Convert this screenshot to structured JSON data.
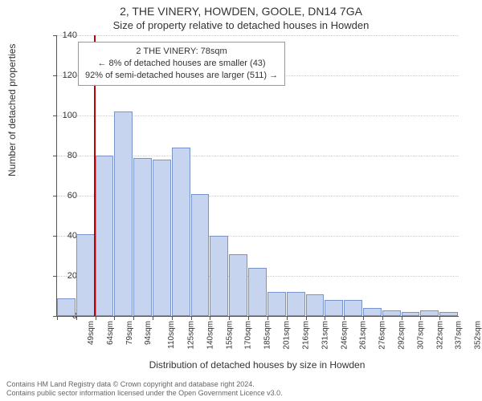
{
  "chart": {
    "type": "histogram",
    "title_main": "2, THE VINERY, HOWDEN, GOOLE, DN14 7GA",
    "title_sub": "Size of property relative to detached houses in Howden",
    "title_fontsize_main": 14,
    "title_fontsize_sub": 13,
    "background_color": "#ffffff",
    "axis_color": "#555555",
    "grid_color": "#cccccc",
    "ylabel": "Number of detached properties",
    "xlabel": "Distribution of detached houses by size in Howden",
    "label_fontsize": 12,
    "tick_fontsize": 11,
    "ylim": [
      0,
      140
    ],
    "ytick_step": 20,
    "bar_color": "#c6d4ef",
    "bar_border_color": "#7a93c9",
    "xtick_suffix": "sqm",
    "bin_starts": [
      49,
      64,
      79,
      94,
      110,
      125,
      140,
      155,
      170,
      185,
      201,
      216,
      231,
      246,
      261,
      276,
      292,
      307,
      322,
      337,
      352
    ],
    "values": [
      9,
      41,
      80,
      102,
      79,
      78,
      84,
      61,
      40,
      31,
      24,
      12,
      12,
      11,
      8,
      8,
      4,
      3,
      2,
      3,
      2
    ],
    "refline": {
      "x": 78,
      "color": "#c00000",
      "width": 2
    },
    "info_box": {
      "lines": [
        "2 THE VINERY: 78sqm",
        "← 8% of detached houses are smaller (43)",
        "92% of semi-detached houses are larger (511) →"
      ],
      "border_color": "#999999",
      "bg_color": "#ffffff",
      "fontsize": 11
    }
  },
  "copyright": {
    "line1": "Contains HM Land Registry data © Crown copyright and database right 2024.",
    "line2": "Contains public sector information licensed under the Open Government Licence v3.0.",
    "color": "#666666",
    "fontsize": 9
  }
}
